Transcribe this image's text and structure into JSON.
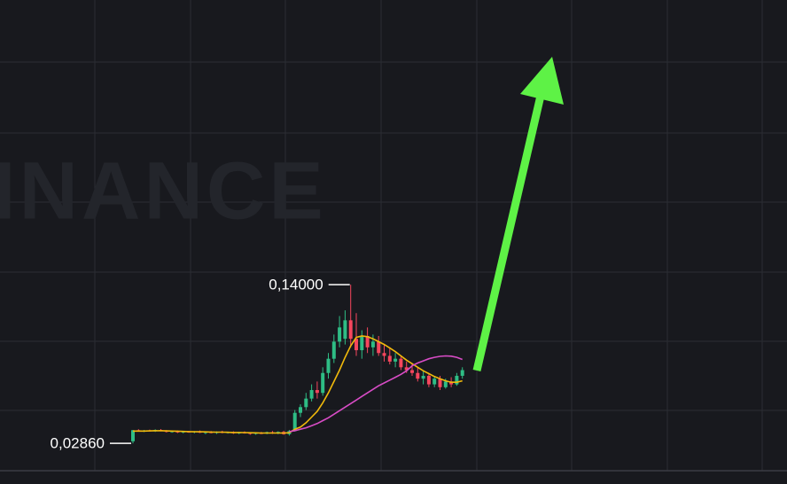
{
  "chart_data": {
    "type": "candlestick",
    "watermark": "INANCE",
    "ylim": [
      0,
      0.34
    ],
    "up_color": "#2ebd85",
    "down_color": "#f6465d",
    "open": [
      0.03,
      0.0378,
      0.0372,
      0.0376,
      0.037,
      0.038,
      0.0372,
      0.0366,
      0.037,
      0.0362,
      0.0368,
      0.0364,
      0.037,
      0.036,
      0.0364,
      0.0358,
      0.0366,
      0.036,
      0.0364,
      0.0356,
      0.0362,
      0.0358,
      0.0352,
      0.0358,
      0.0354,
      0.0364,
      0.0356,
      0.0366,
      0.035,
      0.0372,
      0.05,
      0.054,
      0.06,
      0.066,
      0.064,
      0.078,
      0.088,
      0.1,
      0.102,
      0.115,
      0.102,
      0.094,
      0.104,
      0.096,
      0.1,
      0.092,
      0.09,
      0.086,
      0.088,
      0.082,
      0.08,
      0.078,
      0.074,
      0.076,
      0.07,
      0.074,
      0.068,
      0.072,
      0.07,
      0.076
    ],
    "high": [
      0.038,
      0.0385,
      0.038,
      0.0382,
      0.0384,
      0.0386,
      0.0378,
      0.0374,
      0.0376,
      0.0372,
      0.0374,
      0.0372,
      0.0376,
      0.0368,
      0.0372,
      0.037,
      0.0374,
      0.0368,
      0.037,
      0.0366,
      0.037,
      0.0364,
      0.0362,
      0.0366,
      0.0368,
      0.0372,
      0.037,
      0.0374,
      0.038,
      0.052,
      0.056,
      0.064,
      0.07,
      0.072,
      0.082,
      0.092,
      0.105,
      0.118,
      0.122,
      0.14,
      0.12,
      0.108,
      0.11,
      0.105,
      0.104,
      0.098,
      0.096,
      0.092,
      0.09,
      0.086,
      0.084,
      0.082,
      0.08,
      0.078,
      0.076,
      0.076,
      0.074,
      0.075,
      0.078,
      0.082
    ],
    "low": [
      0.0286,
      0.0368,
      0.0365,
      0.0368,
      0.0366,
      0.037,
      0.0362,
      0.036,
      0.0358,
      0.0356,
      0.036,
      0.0356,
      0.0358,
      0.035,
      0.0356,
      0.0352,
      0.0356,
      0.0354,
      0.0352,
      0.035,
      0.0354,
      0.0346,
      0.0346,
      0.035,
      0.035,
      0.0352,
      0.035,
      0.0346,
      0.034,
      0.0368,
      0.047,
      0.052,
      0.058,
      0.06,
      0.062,
      0.074,
      0.085,
      0.096,
      0.098,
      0.096,
      0.09,
      0.088,
      0.092,
      0.09,
      0.09,
      0.086,
      0.084,
      0.082,
      0.08,
      0.078,
      0.076,
      0.072,
      0.07,
      0.068,
      0.068,
      0.066,
      0.067,
      0.068,
      0.069,
      0.074
    ],
    "close": [
      0.0378,
      0.0372,
      0.0376,
      0.037,
      0.038,
      0.0372,
      0.0366,
      0.037,
      0.0362,
      0.0368,
      0.0364,
      0.037,
      0.036,
      0.0364,
      0.0358,
      0.0366,
      0.036,
      0.0364,
      0.0356,
      0.0362,
      0.0358,
      0.0352,
      0.0358,
      0.0354,
      0.0364,
      0.0356,
      0.0366,
      0.035,
      0.0372,
      0.05,
      0.054,
      0.06,
      0.066,
      0.064,
      0.078,
      0.088,
      0.1,
      0.11,
      0.115,
      0.102,
      0.094,
      0.104,
      0.096,
      0.1,
      0.092,
      0.09,
      0.086,
      0.088,
      0.082,
      0.08,
      0.078,
      0.074,
      0.076,
      0.07,
      0.074,
      0.068,
      0.072,
      0.07,
      0.076,
      0.08
    ],
    "series": [
      {
        "color": "#f0b90b",
        "values": [
          0.0372,
          0.0372,
          0.0372,
          0.0373,
          0.0374,
          0.0374,
          0.0373,
          0.0372,
          0.0371,
          0.0369,
          0.0368,
          0.0367,
          0.0367,
          0.0366,
          0.0365,
          0.0364,
          0.0364,
          0.0363,
          0.0362,
          0.0362,
          0.0361,
          0.036,
          0.0359,
          0.0358,
          0.0358,
          0.0358,
          0.0358,
          0.0358,
          0.036,
          0.0385,
          0.04,
          0.043,
          0.047,
          0.051,
          0.057,
          0.064,
          0.072,
          0.08,
          0.089,
          0.097,
          0.103,
          0.104,
          0.1035,
          0.102,
          0.1,
          0.098,
          0.0955,
          0.093,
          0.09,
          0.087,
          0.0845,
          0.082,
          0.0795,
          0.0775,
          0.0755,
          0.074,
          0.0725,
          0.0715,
          0.0715,
          0.0725
        ]
      },
      {
        "color": "#d84cc6",
        "values": [
          null,
          null,
          null,
          null,
          null,
          null,
          null,
          null,
          null,
          null,
          null,
          null,
          null,
          null,
          null,
          null,
          null,
          null,
          null,
          null,
          null,
          null,
          null,
          null,
          null,
          null,
          null,
          null,
          0.0368,
          0.0375,
          0.0385,
          0.0395,
          0.041,
          0.0425,
          0.0445,
          0.0465,
          0.049,
          0.0515,
          0.054,
          0.0565,
          0.059,
          0.0615,
          0.064,
          0.0665,
          0.069,
          0.071,
          0.073,
          0.075,
          0.077,
          0.0795,
          0.083,
          0.085,
          0.0865,
          0.088,
          0.089,
          0.0897,
          0.09,
          0.0898,
          0.089,
          0.0875
        ]
      }
    ],
    "annotations": [
      {
        "value": 0.14,
        "label": "0,14000"
      },
      {
        "value": 0.0286,
        "label": "0,02860"
      }
    ]
  }
}
